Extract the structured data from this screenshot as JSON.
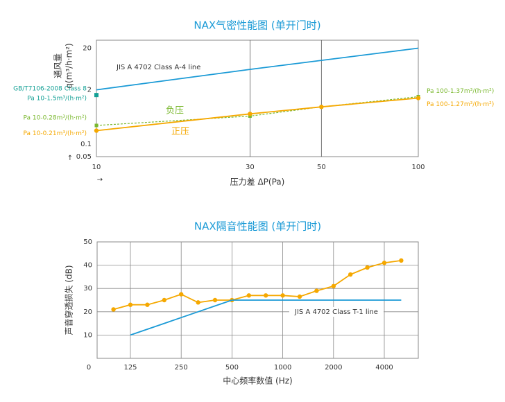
{
  "chart_data": [
    {
      "type": "line",
      "title": "NAX气密性能图 (单开门时)",
      "x_label": "压力差 ΔP(Pa)",
      "y_label": [
        "通风量",
        "q(m³/h·m²)"
      ],
      "log_x": true,
      "log_y": true,
      "xlim": [
        10,
        100
      ],
      "xticks": [
        10,
        30,
        50,
        100
      ],
      "ylim": [
        0.05,
        31
      ],
      "yticks": [
        0.05,
        0.1,
        2,
        20
      ],
      "grid_x": true,
      "series": [
        {
          "name": "JIS A 4702 Class A-4 line",
          "color": "#1a9ad6",
          "x": [
            10,
            30,
            100
          ],
          "values": [
            2,
            6.2,
            20
          ]
        },
        {
          "name": "负压",
          "color": "#7ab82e",
          "dashed": true,
          "marker": "square",
          "x": [
            10,
            30,
            50,
            100
          ],
          "values": [
            0.28,
            0.47,
            0.78,
            1.37
          ],
          "end_labels": [
            "Pa 10-0.28m³/(h·m²)",
            "Pa 100-1.37m³/(h·m²)"
          ]
        },
        {
          "name": "正压",
          "color": "#f5a800",
          "marker": "circle",
          "x": [
            10,
            30,
            50,
            100
          ],
          "values": [
            0.21,
            0.53,
            0.78,
            1.27
          ],
          "end_labels": [
            "Pa 10-0.21m³/(h·m²)",
            "Pa 100-1.27m³/(h·m²)"
          ]
        }
      ],
      "annotations": [
        {
          "lines": [
            "GB/T7106-2008 Class 8",
            "Pa 10-1.5m³/(h·m²)"
          ],
          "x": 10,
          "y": 1.5,
          "color": "#13a095"
        }
      ]
    },
    {
      "type": "line",
      "title": "NAX隔音性能图 (单开门时)",
      "x_label": "中心频率数值 (Hz)",
      "y_label": [
        "声音穿透损失 (dB)"
      ],
      "categories": [
        null,
        "125",
        null,
        null,
        "250",
        null,
        null,
        "500",
        null,
        null,
        "1000",
        null,
        null,
        "2000",
        null,
        null,
        "4000",
        null
      ],
      "ylim": [
        0,
        50
      ],
      "yticks": [
        0,
        10,
        20,
        30,
        40,
        50
      ],
      "grid_x": true,
      "grid_y": true,
      "series": [
        {
          "color": "#f5a800",
          "marker": "circle",
          "values": [
            21,
            23,
            23,
            25,
            27.5,
            24,
            25,
            25,
            27,
            27,
            27,
            26.5,
            29,
            31,
            36,
            39,
            41,
            42
          ]
        },
        {
          "name": "JIS A 4702 Class T-1 line",
          "color": "#1a9ad6",
          "values": [
            null,
            10,
            12.5,
            15,
            17.5,
            20,
            22.5,
            25,
            25,
            25,
            25,
            25,
            25,
            25,
            25,
            25,
            25,
            25
          ]
        }
      ]
    }
  ]
}
